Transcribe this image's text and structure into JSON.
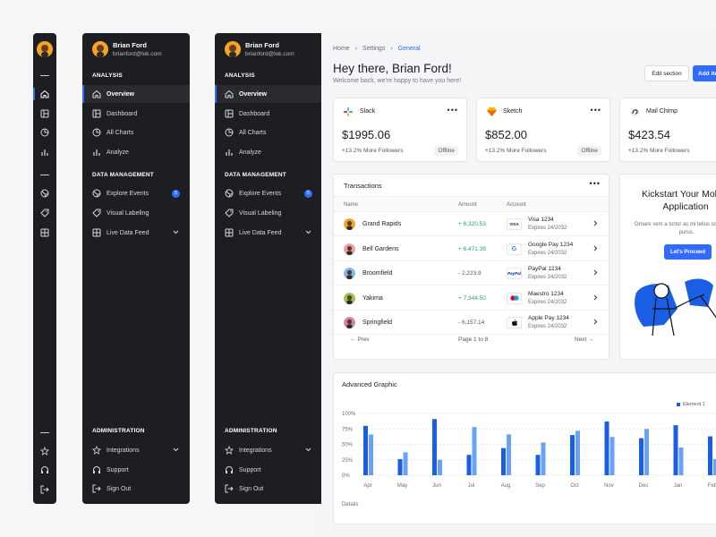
{
  "user": {
    "name": "Brian Ford",
    "email": "brianford@lok.com"
  },
  "sidebar": {
    "sections": [
      {
        "title": "ANALYSIS",
        "items": [
          {
            "label": "Overview",
            "icon": "home-icon",
            "active": true
          },
          {
            "label": "Dashboard",
            "icon": "dashboard-icon"
          },
          {
            "label": "All Charts",
            "icon": "pie-chart-icon"
          },
          {
            "label": "Analyze",
            "icon": "bar-chart-icon"
          }
        ]
      },
      {
        "title": "DATA MANAGEMENT",
        "items": [
          {
            "label": "Explore Events",
            "icon": "globe-icon",
            "badge": "5"
          },
          {
            "label": "Visual Labeling",
            "icon": "tag-icon"
          },
          {
            "label": "Live Data Feed",
            "icon": "grid-icon",
            "expandable": true
          }
        ]
      },
      {
        "title": "ADMINISTRATION",
        "items": [
          {
            "label": "Integrations",
            "icon": "star-icon",
            "expandable": true
          },
          {
            "label": "Support",
            "icon": "headphones-icon"
          },
          {
            "label": "Sign Out",
            "icon": "sign-out-icon"
          }
        ]
      }
    ]
  },
  "breadcrumb": [
    "Home",
    "Settings",
    "General"
  ],
  "header": {
    "greeting": "Hey there, Brian Ford!",
    "subtitle": "Welcome back, we're happy to have you here!",
    "edit_label": "Edit section",
    "add_label": "Add item"
  },
  "stats": [
    {
      "name": "Slack",
      "amount": "$1995.06",
      "followers": "+13.2% More Followers",
      "status": "Offline",
      "logo": "slack-logo"
    },
    {
      "name": "Sketch",
      "amount": "$852.00",
      "followers": "+13.2% More Followers",
      "status": "Offline",
      "logo": "sketch-logo"
    },
    {
      "name": "Mail Chimp",
      "amount": "$423.54",
      "followers": "+13.2% More Followers",
      "status": "",
      "logo": "mailchimp-logo"
    }
  ],
  "transactions": {
    "title": "Transactions",
    "columns": [
      "Name",
      "Amount",
      "Account"
    ],
    "rows": [
      {
        "name": "Grand Rapids",
        "amount": "+ 6,320.53",
        "positive": true,
        "brand": "VISA",
        "account": "Visa 1234",
        "expires": "Expires 24/2032",
        "avatar": "#f5a524"
      },
      {
        "name": "Bell Gardens",
        "amount": "+ 6,471.39",
        "positive": true,
        "brand": "G",
        "account": "Google Pay 1234",
        "expires": "Expires 24/2032",
        "avatar": "#e8a3a0"
      },
      {
        "name": "Broomfield",
        "amount": "- 2,223.9",
        "positive": false,
        "brand": "PayPal",
        "account": "PayPal 1234",
        "expires": "Expires 24/2032",
        "avatar": "#7fb7e6"
      },
      {
        "name": "Yakima",
        "amount": "+ 7,344.50",
        "positive": true,
        "brand": "MC",
        "account": "Maestro 1234",
        "expires": "Expires 24/2032",
        "avatar": "#9ac24a"
      },
      {
        "name": "Springfield",
        "amount": "- 6,157.14",
        "positive": false,
        "brand": "",
        "account": "Apple Pay 1234",
        "expires": "Expires 24/2032",
        "avatar": "#d67fa8"
      }
    ],
    "prev": "Prev",
    "page": "Page 1 to 8",
    "next": "Next"
  },
  "kickstart": {
    "title": "Kickstart Your Mobile Application",
    "text": "Ornare sem a tortor ac mi tellus scelerisque purus.",
    "button": "Let's Proceed"
  },
  "chart_data": {
    "type": "bar",
    "title": "Advanced Graphic",
    "categories": [
      "Apr",
      "May",
      "Jun",
      "Jul",
      "Aug",
      "Sep",
      "Oct",
      "Nov",
      "Dec",
      "Jan",
      "Feb"
    ],
    "series": [
      {
        "name": "Element 1",
        "color": "#1a5ee6",
        "values": [
          80,
          26,
          91,
          33,
          44,
          33,
          65,
          87,
          60,
          81,
          63
        ]
      },
      {
        "color": "#6aa2f7",
        "values": [
          66,
          37,
          25,
          78,
          66,
          53,
          72,
          62,
          75,
          45,
          26
        ]
      }
    ],
    "yticks": [
      "0%",
      "25%",
      "50%",
      "75%",
      "100%"
    ],
    "ylim": [
      0,
      100
    ],
    "legend": "top-right",
    "grid": true
  },
  "chart_footer": "Details"
}
